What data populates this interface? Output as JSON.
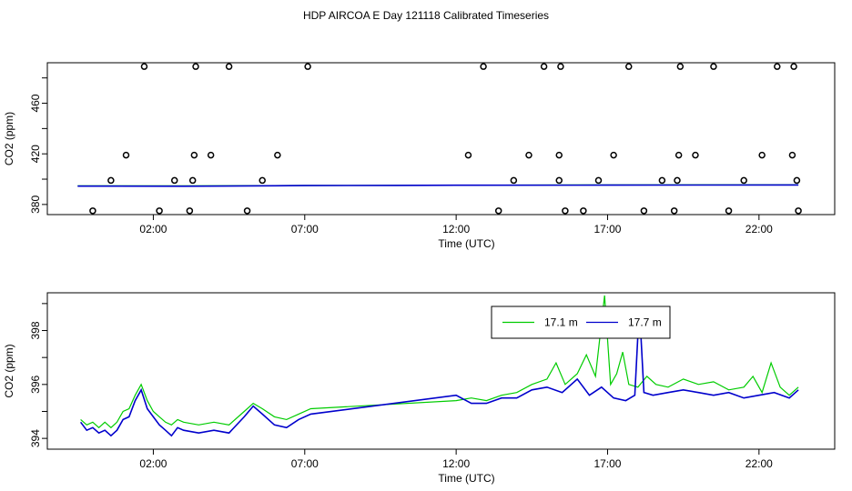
{
  "page": {
    "title": "HDP AIRCOA E  Day 121118  Calibrated Timeseries"
  },
  "colors": {
    "series_17_1": "#00cc00",
    "series_17_7": "#0000cc",
    "axis": "#000000"
  },
  "chart_data": [
    {
      "type": "scatter",
      "xlabel": "Time (UTC)",
      "ylabel": "CO2 (ppm)",
      "xlim": [
        -1.5,
        24.5
      ],
      "ylim": [
        372,
        492
      ],
      "x_ticks": [
        2,
        7,
        12,
        17,
        22
      ],
      "x_tick_labels": [
        "02:00",
        "07:00",
        "12:00",
        "17:00",
        "22:00"
      ],
      "y_ticks": [
        380,
        420,
        460
      ],
      "y_minor_ticks": [
        400,
        440,
        480
      ],
      "points": [
        [
          0.0,
          375
        ],
        [
          0.6,
          399
        ],
        [
          1.1,
          419
        ],
        [
          1.7,
          489
        ],
        [
          2.2,
          375
        ],
        [
          2.7,
          399
        ],
        [
          3.2,
          375
        ],
        [
          3.3,
          399
        ],
        [
          3.35,
          419
        ],
        [
          3.4,
          489
        ],
        [
          3.9,
          419
        ],
        [
          4.5,
          489
        ],
        [
          5.1,
          375
        ],
        [
          5.6,
          399
        ],
        [
          6.1,
          419
        ],
        [
          7.1,
          489
        ],
        [
          12.4,
          419
        ],
        [
          12.9,
          489
        ],
        [
          13.4,
          375
        ],
        [
          13.9,
          399
        ],
        [
          14.4,
          419
        ],
        [
          14.9,
          489
        ],
        [
          15.4,
          399
        ],
        [
          15.45,
          489
        ],
        [
          15.4,
          419
        ],
        [
          15.6,
          375
        ],
        [
          16.2,
          375
        ],
        [
          16.7,
          399
        ],
        [
          17.2,
          419
        ],
        [
          17.7,
          489
        ],
        [
          18.2,
          375
        ],
        [
          18.8,
          399
        ],
        [
          19.2,
          375
        ],
        [
          19.3,
          399
        ],
        [
          19.35,
          419
        ],
        [
          19.4,
          489
        ],
        [
          19.9,
          419
        ],
        [
          20.5,
          489
        ],
        [
          21.0,
          375
        ],
        [
          21.5,
          399
        ],
        [
          22.1,
          419
        ],
        [
          22.6,
          489
        ],
        [
          23.1,
          419
        ],
        [
          23.15,
          489
        ],
        [
          23.25,
          399
        ],
        [
          23.3,
          375
        ]
      ],
      "series": [
        {
          "values": [
            [
              -0.5,
              394.8
            ],
            [
              3,
              394.7
            ],
            [
              7,
              395.0
            ],
            [
              12,
              395.2
            ],
            [
              17,
              395.5
            ],
            [
              23.3,
              395.6
            ]
          ]
        },
        {
          "values": [
            [
              -0.5,
              394.5
            ],
            [
              3,
              394.4
            ],
            [
              6,
              394.8
            ],
            [
              7,
              394.9
            ],
            [
              10,
              395.1
            ],
            [
              12,
              395.2
            ],
            [
              17,
              395.3
            ],
            [
              23.3,
              395.4
            ]
          ]
        }
      ]
    },
    {
      "type": "line",
      "xlabel": "Time (UTC)",
      "ylabel": "CO2 (ppm)",
      "xlim": [
        -1.5,
        24.5
      ],
      "ylim": [
        393.6,
        399.4
      ],
      "x_ticks": [
        2,
        7,
        12,
        17,
        22
      ],
      "x_tick_labels": [
        "02:00",
        "07:00",
        "12:00",
        "17:00",
        "22:00"
      ],
      "y_ticks": [
        394,
        396,
        398
      ],
      "y_minor_ticks": [
        395,
        397,
        399
      ],
      "legend": {
        "position": "top-right",
        "entries": [
          "17.1 m",
          "17.7 m"
        ]
      },
      "series": [
        {
          "name": "17.1 m",
          "values": [
            [
              -0.4,
              394.7
            ],
            [
              -0.2,
              394.5
            ],
            [
              0.0,
              394.6
            ],
            [
              0.2,
              394.4
            ],
            [
              0.4,
              394.6
            ],
            [
              0.6,
              394.4
            ],
            [
              0.8,
              394.6
            ],
            [
              1.0,
              395.0
            ],
            [
              1.2,
              395.1
            ],
            [
              1.4,
              395.6
            ],
            [
              1.6,
              396.0
            ],
            [
              1.8,
              395.4
            ],
            [
              2.0,
              395.0
            ],
            [
              2.2,
              394.8
            ],
            [
              2.4,
              394.6
            ],
            [
              2.6,
              394.5
            ],
            [
              2.8,
              394.7
            ],
            [
              3.0,
              394.6
            ],
            [
              3.5,
              394.5
            ],
            [
              4.0,
              394.6
            ],
            [
              4.5,
              394.5
            ],
            [
              5.0,
              395.0
            ],
            [
              5.3,
              395.3
            ],
            [
              5.6,
              395.1
            ],
            [
              6.0,
              394.8
            ],
            [
              6.4,
              394.7
            ],
            [
              6.8,
              394.9
            ],
            [
              7.2,
              395.1
            ],
            [
              12.0,
              395.4
            ],
            [
              12.5,
              395.5
            ],
            [
              13.0,
              395.4
            ],
            [
              13.5,
              395.6
            ],
            [
              14.0,
              395.7
            ],
            [
              14.5,
              396.0
            ],
            [
              15.0,
              396.2
            ],
            [
              15.3,
              396.8
            ],
            [
              15.6,
              396.0
            ],
            [
              16.0,
              396.4
            ],
            [
              16.3,
              397.1
            ],
            [
              16.6,
              396.3
            ],
            [
              16.9,
              399.3
            ],
            [
              17.1,
              396.0
            ],
            [
              17.3,
              396.4
            ],
            [
              17.5,
              397.2
            ],
            [
              17.7,
              396.0
            ],
            [
              18.0,
              395.9
            ],
            [
              18.3,
              396.3
            ],
            [
              18.6,
              396.0
            ],
            [
              19.0,
              395.9
            ],
            [
              19.5,
              396.2
            ],
            [
              20.0,
              396.0
            ],
            [
              20.5,
              396.1
            ],
            [
              21.0,
              395.8
            ],
            [
              21.5,
              395.9
            ],
            [
              21.8,
              396.3
            ],
            [
              22.1,
              395.7
            ],
            [
              22.4,
              396.8
            ],
            [
              22.7,
              395.9
            ],
            [
              23.0,
              395.6
            ],
            [
              23.3,
              395.9
            ]
          ]
        },
        {
          "name": "17.7 m",
          "values": [
            [
              -0.4,
              394.6
            ],
            [
              -0.2,
              394.3
            ],
            [
              0.0,
              394.4
            ],
            [
              0.2,
              394.2
            ],
            [
              0.4,
              394.3
            ],
            [
              0.6,
              394.1
            ],
            [
              0.8,
              394.3
            ],
            [
              1.0,
              394.7
            ],
            [
              1.2,
              394.8
            ],
            [
              1.4,
              395.4
            ],
            [
              1.6,
              395.8
            ],
            [
              1.8,
              395.1
            ],
            [
              2.0,
              394.8
            ],
            [
              2.2,
              394.5
            ],
            [
              2.4,
              394.3
            ],
            [
              2.6,
              394.1
            ],
            [
              2.8,
              394.4
            ],
            [
              3.0,
              394.3
            ],
            [
              3.5,
              394.2
            ],
            [
              4.0,
              394.3
            ],
            [
              4.5,
              394.2
            ],
            [
              5.0,
              394.8
            ],
            [
              5.3,
              395.2
            ],
            [
              5.6,
              394.9
            ],
            [
              6.0,
              394.5
            ],
            [
              6.4,
              394.4
            ],
            [
              6.8,
              394.7
            ],
            [
              7.2,
              394.9
            ],
            [
              12.0,
              395.6
            ],
            [
              12.5,
              395.3
            ],
            [
              13.0,
              395.3
            ],
            [
              13.5,
              395.5
            ],
            [
              14.0,
              395.5
            ],
            [
              14.5,
              395.8
            ],
            [
              15.0,
              395.9
            ],
            [
              15.5,
              395.7
            ],
            [
              16.0,
              396.2
            ],
            [
              16.4,
              395.6
            ],
            [
              16.8,
              395.9
            ],
            [
              17.2,
              395.5
            ],
            [
              17.6,
              395.4
            ],
            [
              17.9,
              395.6
            ],
            [
              18.05,
              398.9
            ],
            [
              18.2,
              395.7
            ],
            [
              18.5,
              395.6
            ],
            [
              19.0,
              395.7
            ],
            [
              19.5,
              395.8
            ],
            [
              20.0,
              395.7
            ],
            [
              20.5,
              395.6
            ],
            [
              21.0,
              395.7
            ],
            [
              21.5,
              395.5
            ],
            [
              22.0,
              395.6
            ],
            [
              22.5,
              395.7
            ],
            [
              23.0,
              395.5
            ],
            [
              23.3,
              395.8
            ]
          ]
        }
      ]
    }
  ]
}
